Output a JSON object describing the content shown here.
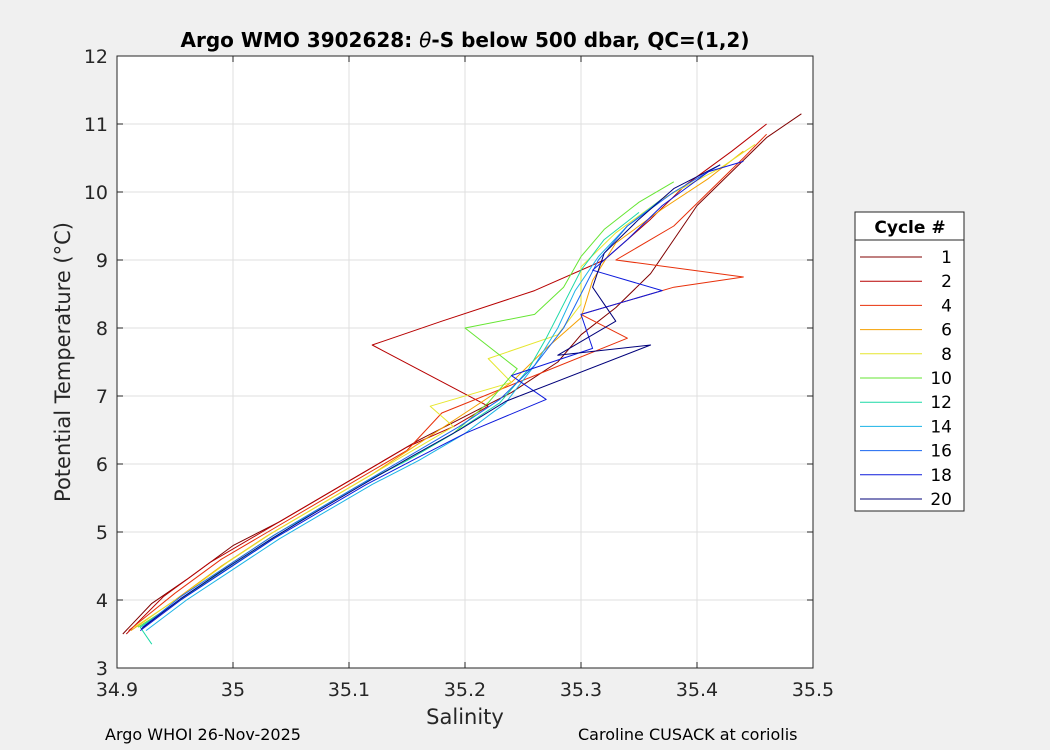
{
  "chart_data": {
    "type": "line",
    "title_prefix": "Argo WMO 3902628: ",
    "title_theta": "θ",
    "title_suffix": "-S below 500 dbar,  QC=(1,2)",
    "xlabel": "Salinity",
    "ylabel": "Potential Temperature (°C)",
    "xlim": [
      34.9,
      35.5
    ],
    "ylim": [
      3,
      12
    ],
    "xticks": [
      34.9,
      35.0,
      35.1,
      35.2,
      35.3,
      35.4,
      35.5
    ],
    "xtick_labels": [
      "34.9",
      "35",
      "35.1",
      "35.2",
      "35.3",
      "35.4",
      "35.5"
    ],
    "yticks": [
      3,
      4,
      5,
      6,
      7,
      8,
      9,
      10,
      11,
      12
    ],
    "ytick_labels": [
      "3",
      "4",
      "5",
      "6",
      "7",
      "8",
      "9",
      "10",
      "11",
      "12"
    ],
    "grid": true,
    "legend_title": "Cycle #",
    "legend_position": "outside-right",
    "series": [
      {
        "name": "1",
        "color": "#800000",
        "points": [
          [
            34.905,
            3.5
          ],
          [
            34.93,
            3.95
          ],
          [
            34.96,
            4.3
          ],
          [
            35.0,
            4.8
          ],
          [
            35.04,
            5.15
          ],
          [
            35.08,
            5.55
          ],
          [
            35.12,
            5.95
          ],
          [
            35.16,
            6.35
          ],
          [
            35.2,
            6.7
          ],
          [
            35.24,
            7.05
          ],
          [
            35.28,
            7.5
          ],
          [
            35.3,
            7.9
          ],
          [
            35.33,
            8.3
          ],
          [
            35.36,
            8.8
          ],
          [
            35.38,
            9.3
          ],
          [
            35.4,
            9.8
          ],
          [
            35.43,
            10.3
          ],
          [
            35.46,
            10.8
          ],
          [
            35.49,
            11.15
          ]
        ]
      },
      {
        "name": "2",
        "color": "#b70000",
        "points": [
          [
            34.908,
            3.5
          ],
          [
            34.94,
            4.05
          ],
          [
            34.98,
            4.55
          ],
          [
            35.03,
            5.05
          ],
          [
            35.07,
            5.45
          ],
          [
            35.11,
            5.85
          ],
          [
            35.15,
            6.25
          ],
          [
            35.19,
            6.55
          ],
          [
            35.22,
            6.85
          ],
          [
            35.12,
            7.75
          ],
          [
            35.18,
            8.1
          ],
          [
            35.26,
            8.55
          ],
          [
            35.32,
            9.0
          ],
          [
            35.36,
            9.6
          ],
          [
            35.39,
            10.1
          ],
          [
            35.43,
            10.6
          ],
          [
            35.46,
            11.0
          ]
        ]
      },
      {
        "name": "4",
        "color": "#e8300a",
        "points": [
          [
            34.91,
            3.55
          ],
          [
            34.95,
            4.1
          ],
          [
            34.99,
            4.6
          ],
          [
            35.03,
            5.0
          ],
          [
            35.07,
            5.4
          ],
          [
            35.11,
            5.8
          ],
          [
            35.15,
            6.2
          ],
          [
            35.18,
            6.75
          ],
          [
            35.26,
            7.3
          ],
          [
            35.34,
            7.85
          ],
          [
            35.3,
            8.2
          ],
          [
            35.38,
            8.6
          ],
          [
            35.44,
            8.75
          ],
          [
            35.33,
            9.0
          ],
          [
            35.38,
            9.5
          ],
          [
            35.41,
            10.0
          ],
          [
            35.44,
            10.5
          ],
          [
            35.46,
            10.85
          ]
        ]
      },
      {
        "name": "6",
        "color": "#f5a000",
        "points": [
          [
            34.912,
            3.55
          ],
          [
            34.95,
            4.0
          ],
          [
            34.99,
            4.5
          ],
          [
            35.03,
            4.95
          ],
          [
            35.07,
            5.35
          ],
          [
            35.12,
            5.85
          ],
          [
            35.16,
            6.3
          ],
          [
            35.2,
            6.75
          ],
          [
            35.24,
            7.2
          ],
          [
            35.27,
            7.7
          ],
          [
            35.3,
            8.15
          ],
          [
            35.31,
            8.7
          ],
          [
            35.33,
            9.25
          ],
          [
            35.37,
            9.75
          ],
          [
            35.41,
            10.2
          ],
          [
            35.44,
            10.6
          ]
        ]
      },
      {
        "name": "8",
        "color": "#e6e62e",
        "points": [
          [
            34.915,
            3.6
          ],
          [
            34.955,
            4.05
          ],
          [
            34.995,
            4.55
          ],
          [
            35.035,
            5.0
          ],
          [
            35.075,
            5.4
          ],
          [
            35.115,
            5.8
          ],
          [
            35.155,
            6.2
          ],
          [
            35.19,
            6.55
          ],
          [
            35.17,
            6.85
          ],
          [
            35.24,
            7.2
          ],
          [
            35.22,
            7.55
          ],
          [
            35.28,
            7.9
          ],
          [
            35.3,
            8.35
          ],
          [
            35.3,
            8.9
          ],
          [
            35.33,
            9.4
          ],
          [
            35.37,
            9.9
          ],
          [
            35.42,
            10.35
          ],
          [
            35.45,
            10.7
          ]
        ]
      },
      {
        "name": "10",
        "color": "#66e633",
        "points": [
          [
            34.918,
            3.6
          ],
          [
            34.955,
            4.0
          ],
          [
            34.995,
            4.5
          ],
          [
            35.035,
            4.95
          ],
          [
            35.075,
            5.35
          ],
          [
            35.115,
            5.75
          ],
          [
            35.155,
            6.1
          ],
          [
            35.19,
            6.45
          ],
          [
            35.22,
            6.9
          ],
          [
            35.245,
            7.4
          ],
          [
            35.2,
            8.0
          ],
          [
            35.26,
            8.2
          ],
          [
            35.285,
            8.6
          ],
          [
            35.3,
            9.05
          ],
          [
            35.32,
            9.45
          ],
          [
            35.35,
            9.85
          ],
          [
            35.38,
            10.15
          ]
        ]
      },
      {
        "name": "12",
        "color": "#1ad9a6",
        "points": [
          [
            34.93,
            3.35
          ],
          [
            34.92,
            3.6
          ],
          [
            34.95,
            3.95
          ],
          [
            34.99,
            4.4
          ],
          [
            35.03,
            4.85
          ],
          [
            35.07,
            5.3
          ],
          [
            35.11,
            5.7
          ],
          [
            35.15,
            6.05
          ],
          [
            35.19,
            6.45
          ],
          [
            35.23,
            6.9
          ],
          [
            35.255,
            7.4
          ],
          [
            35.27,
            7.85
          ],
          [
            35.285,
            8.35
          ],
          [
            35.3,
            8.85
          ],
          [
            35.32,
            9.3
          ],
          [
            35.35,
            9.7
          ]
        ]
      },
      {
        "name": "14",
        "color": "#1ab3e6",
        "points": [
          [
            34.925,
            3.55
          ],
          [
            34.96,
            4.0
          ],
          [
            35.0,
            4.45
          ],
          [
            35.04,
            4.9
          ],
          [
            35.08,
            5.3
          ],
          [
            35.12,
            5.7
          ],
          [
            35.16,
            6.05
          ],
          [
            35.2,
            6.45
          ],
          [
            35.235,
            6.9
          ],
          [
            35.26,
            7.45
          ],
          [
            35.28,
            8.0
          ],
          [
            35.295,
            8.55
          ],
          [
            35.315,
            9.05
          ],
          [
            35.34,
            9.5
          ],
          [
            35.37,
            9.9
          ]
        ]
      },
      {
        "name": "16",
        "color": "#1a66f0",
        "points": [
          [
            34.922,
            3.6
          ],
          [
            34.955,
            4.05
          ],
          [
            34.995,
            4.5
          ],
          [
            35.035,
            4.95
          ],
          [
            35.075,
            5.35
          ],
          [
            35.115,
            5.75
          ],
          [
            35.155,
            6.15
          ],
          [
            35.195,
            6.55
          ],
          [
            35.23,
            6.95
          ],
          [
            35.26,
            7.45
          ],
          [
            35.285,
            8.0
          ],
          [
            35.3,
            8.5
          ],
          [
            35.315,
            9.0
          ],
          [
            35.34,
            9.5
          ],
          [
            35.38,
            10.0
          ],
          [
            35.42,
            10.4
          ]
        ]
      },
      {
        "name": "18",
        "color": "#0d1adc",
        "points": [
          [
            34.92,
            3.55
          ],
          [
            34.955,
            4.0
          ],
          [
            34.995,
            4.45
          ],
          [
            35.035,
            4.9
          ],
          [
            35.075,
            5.3
          ],
          [
            35.115,
            5.7
          ],
          [
            35.16,
            6.1
          ],
          [
            35.2,
            6.45
          ],
          [
            35.27,
            6.95
          ],
          [
            35.24,
            7.3
          ],
          [
            35.31,
            7.7
          ],
          [
            35.3,
            8.2
          ],
          [
            35.37,
            8.55
          ],
          [
            35.31,
            8.85
          ],
          [
            35.34,
            9.3
          ],
          [
            35.37,
            9.8
          ],
          [
            35.41,
            10.3
          ],
          [
            35.44,
            10.45
          ]
        ]
      },
      {
        "name": "20",
        "color": "#00007a",
        "points": [
          [
            34.921,
            3.58
          ],
          [
            34.955,
            4.02
          ],
          [
            34.995,
            4.48
          ],
          [
            35.035,
            4.92
          ],
          [
            35.075,
            5.33
          ],
          [
            35.115,
            5.73
          ],
          [
            35.155,
            6.12
          ],
          [
            35.195,
            6.5
          ],
          [
            35.235,
            6.92
          ],
          [
            35.36,
            7.75
          ],
          [
            35.28,
            7.6
          ],
          [
            35.33,
            8.1
          ],
          [
            35.31,
            8.6
          ],
          [
            35.32,
            9.1
          ],
          [
            35.35,
            9.6
          ],
          [
            35.38,
            10.05
          ],
          [
            35.42,
            10.4
          ]
        ]
      }
    ]
  },
  "footer": {
    "left": "Argo WHOI 26-Nov-2025",
    "right": "Caroline CUSACK at coriolis"
  }
}
